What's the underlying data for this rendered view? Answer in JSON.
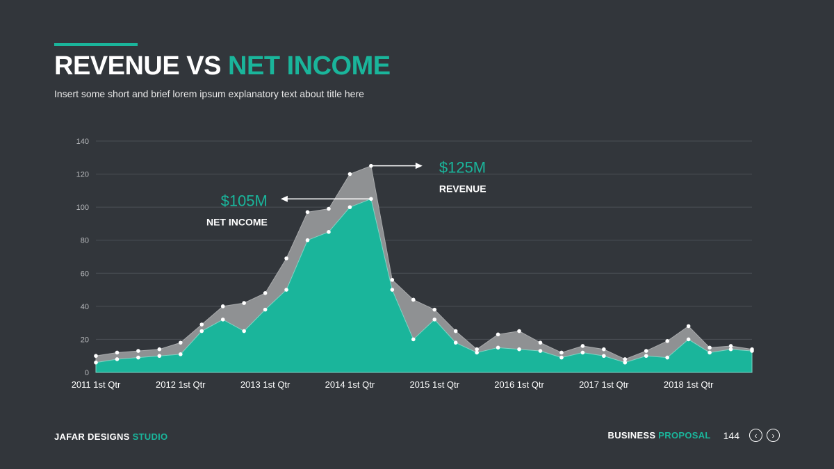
{
  "header": {
    "title_part1": "REVENUE VS ",
    "title_part2": "NET INCOME",
    "subtitle": "Insert some short and brief lorem ipsum explanatory text about title here"
  },
  "footer": {
    "brand_part1": "JAFAR DESIGNS ",
    "brand_part2": "STUDIO",
    "label_part1": "BUSINESS ",
    "label_part2": "PROPOSAL",
    "page_number": "144",
    "prev_icon": "chevron-left-circle-icon",
    "next_icon": "chevron-right-circle-icon"
  },
  "colors": {
    "accent": "#1ab59b",
    "revenue_fill": "#8f9193",
    "background": "#32363b"
  },
  "chart_data": {
    "type": "area",
    "ylim": [
      0,
      140
    ],
    "yticks": [
      0,
      20,
      40,
      60,
      80,
      100,
      120,
      140
    ],
    "grid": true,
    "x_tick_labels": [
      "2011 1st Qtr",
      "2012 1st Qtr",
      "2013 1st Qtr",
      "2014 1st Qtr",
      "2015 1st Qtr",
      "2016 1st Qtr",
      "2017 1st Qtr",
      "2018 1st Qtr"
    ],
    "num_points": 32,
    "series": [
      {
        "name": "Revenue",
        "values": [
          10,
          12,
          13,
          14,
          18,
          29,
          40,
          42,
          48,
          69,
          97,
          99,
          120,
          125,
          56,
          44,
          38,
          25,
          14,
          23,
          25,
          18,
          12,
          16,
          14,
          8,
          13,
          19,
          28,
          15,
          16,
          14
        ]
      },
      {
        "name": "Net Income",
        "values": [
          6,
          8,
          9,
          10,
          11,
          25,
          32,
          25,
          38,
          50,
          80,
          85,
          100,
          105,
          50,
          20,
          32,
          18,
          12,
          15,
          14,
          13,
          9,
          12,
          10,
          6,
          10,
          9,
          20,
          12,
          14,
          13
        ]
      }
    ],
    "annotations": [
      {
        "value": "$125M",
        "label": "REVENUE",
        "point_index": 13,
        "series": "Revenue"
      },
      {
        "value": "$105M",
        "label": "NET INCOME",
        "point_index": 13,
        "series": "Net Income"
      }
    ]
  }
}
